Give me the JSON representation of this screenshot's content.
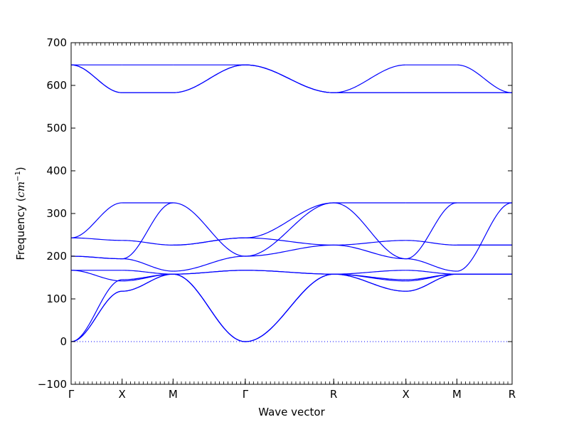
{
  "chart_data": {
    "type": "line",
    "title": "",
    "xlabel": "Wave vector",
    "ylabel_text": "Frequency (",
    "ylabel_unit": "cm",
    "ylabel_exp": "−1",
    "ylabel_close": ")",
    "ylim": [
      -100,
      700
    ],
    "yticks": [
      -100,
      0,
      100,
      200,
      300,
      400,
      500,
      600,
      700
    ],
    "xlim": [
      0,
      5.19
    ],
    "grid": false,
    "legend": "none",
    "line_color": "#0000ff",
    "zero_line": {
      "y": 0,
      "style": "dotted"
    },
    "high_symmetry_points": [
      {
        "label": "Γ",
        "x": 0
      },
      {
        "label": "X",
        "x": 0.6
      },
      {
        "label": "M",
        "x": 1.2
      },
      {
        "label": "Γ",
        "x": 2.05
      },
      {
        "label": "R",
        "x": 3.09
      },
      {
        "label": "X",
        "x": 3.94
      },
      {
        "label": "M",
        "x": 4.54
      },
      {
        "label": "R",
        "x": 5.19
      }
    ],
    "segments": [
      {
        "from": "Γ",
        "to": "X",
        "branches": [
          [
            0,
            118
          ],
          [
            0,
            118
          ],
          [
            0,
            145
          ],
          [
            167,
            142
          ],
          [
            167,
            167
          ],
          [
            200,
            194
          ],
          [
            200,
            194
          ],
          [
            243,
            237
          ],
          [
            243,
            325
          ],
          [
            648,
            648
          ],
          [
            648,
            583
          ],
          [
            648,
            583
          ]
        ]
      },
      {
        "from": "X",
        "to": "M",
        "branches": [
          [
            118,
            158
          ],
          [
            118,
            158
          ],
          [
            145,
            158
          ],
          [
            142,
            158
          ],
          [
            167,
            158
          ],
          [
            194,
            165
          ],
          [
            194,
            325
          ],
          [
            237,
            226
          ],
          [
            325,
            325
          ],
          [
            648,
            648
          ],
          [
            583,
            583
          ],
          [
            583,
            583
          ]
        ]
      },
      {
        "from": "M",
        "to": "Γ",
        "branches": [
          [
            158,
            0
          ],
          [
            158,
            0
          ],
          [
            158,
            0
          ],
          [
            158,
            167
          ],
          [
            158,
            167
          ],
          [
            165,
            200
          ],
          [
            226,
            243
          ],
          [
            226,
            243
          ],
          [
            325,
            200
          ],
          [
            648,
            648
          ],
          [
            583,
            648
          ],
          [
            583,
            648
          ]
        ]
      },
      {
        "from": "Γ",
        "to": "R",
        "branches": [
          [
            0,
            158
          ],
          [
            0,
            158
          ],
          [
            0,
            158
          ],
          [
            167,
            158
          ],
          [
            167,
            158
          ],
          [
            200,
            226
          ],
          [
            200,
            325
          ],
          [
            243,
            226
          ],
          [
            243,
            325
          ],
          [
            648,
            583
          ],
          [
            648,
            583
          ],
          [
            648,
            583
          ]
        ]
      },
      {
        "from": "R",
        "to": "X",
        "branches": [
          [
            158,
            118
          ],
          [
            158,
            118
          ],
          [
            158,
            145
          ],
          [
            158,
            142
          ],
          [
            158,
            167
          ],
          [
            226,
            194
          ],
          [
            226,
            237
          ],
          [
            325,
            194
          ],
          [
            325,
            325
          ],
          [
            583,
            648
          ],
          [
            583,
            583
          ],
          [
            583,
            583
          ]
        ]
      },
      {
        "from": "X",
        "to": "M",
        "branches": [
          [
            118,
            158
          ],
          [
            118,
            158
          ],
          [
            145,
            158
          ],
          [
            142,
            158
          ],
          [
            167,
            158
          ],
          [
            194,
            165
          ],
          [
            194,
            325
          ],
          [
            237,
            226
          ],
          [
            325,
            325
          ],
          [
            648,
            648
          ],
          [
            583,
            583
          ],
          [
            583,
            583
          ]
        ]
      },
      {
        "from": "M",
        "to": "R",
        "branches": [
          [
            158,
            158
          ],
          [
            158,
            158
          ],
          [
            158,
            158
          ],
          [
            158,
            158
          ],
          [
            158,
            158
          ],
          [
            165,
            325
          ],
          [
            226,
            226
          ],
          [
            226,
            226
          ],
          [
            325,
            325
          ],
          [
            648,
            583
          ],
          [
            583,
            583
          ],
          [
            583,
            583
          ]
        ]
      }
    ]
  }
}
